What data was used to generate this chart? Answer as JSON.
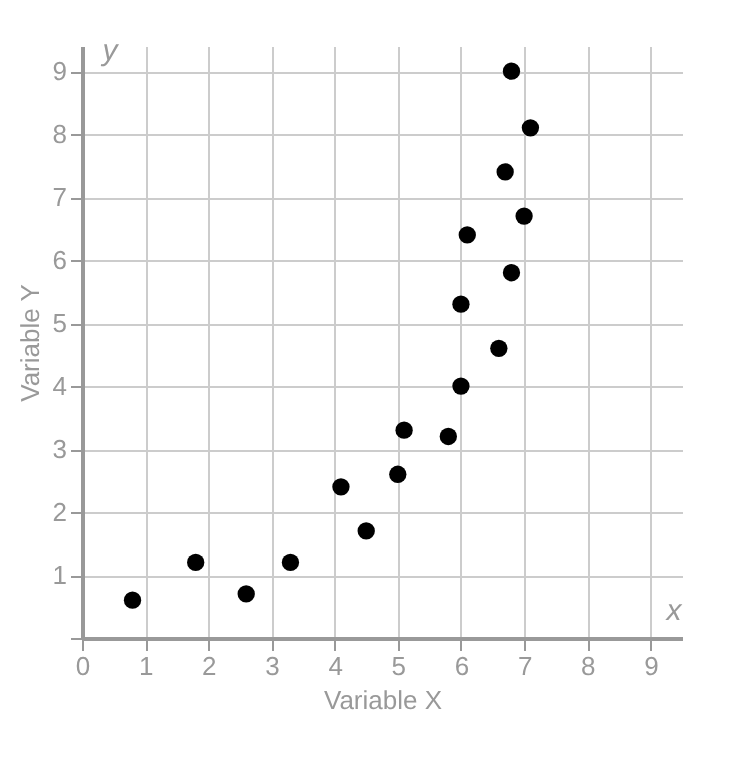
{
  "chart_data": {
    "type": "scatter",
    "xlabel": "Variable X",
    "ylabel": "Variable Y",
    "annotations": [
      "x",
      "y"
    ],
    "x": [
      0.8,
      1.8,
      2.6,
      3.3,
      4.1,
      4.5,
      5.0,
      5.1,
      5.8,
      6.0,
      6.0,
      6.1,
      6.6,
      6.7,
      6.8,
      6.8,
      7.0,
      7.1
    ],
    "series": [
      {
        "color": "#000000",
        "values": [
          0.6,
          1.2,
          0.7,
          1.2,
          2.4,
          1.7,
          2.6,
          3.3,
          3.2,
          4.0,
          5.3,
          6.4,
          4.6,
          7.4,
          5.8,
          9.0,
          6.7,
          8.1
        ]
      }
    ],
    "xlim": [
      0,
      9.5
    ],
    "ylim": [
      0,
      9.4
    ],
    "xticks": [
      {
        "value": 0,
        "label": "0"
      },
      1,
      2,
      3,
      4,
      5,
      6,
      7,
      8,
      9
    ],
    "yticks": [
      {
        "value": 0,
        "label": null
      },
      1,
      2,
      3,
      4,
      5,
      6,
      7,
      8,
      9
    ],
    "grid": true,
    "marker": "circle"
  }
}
